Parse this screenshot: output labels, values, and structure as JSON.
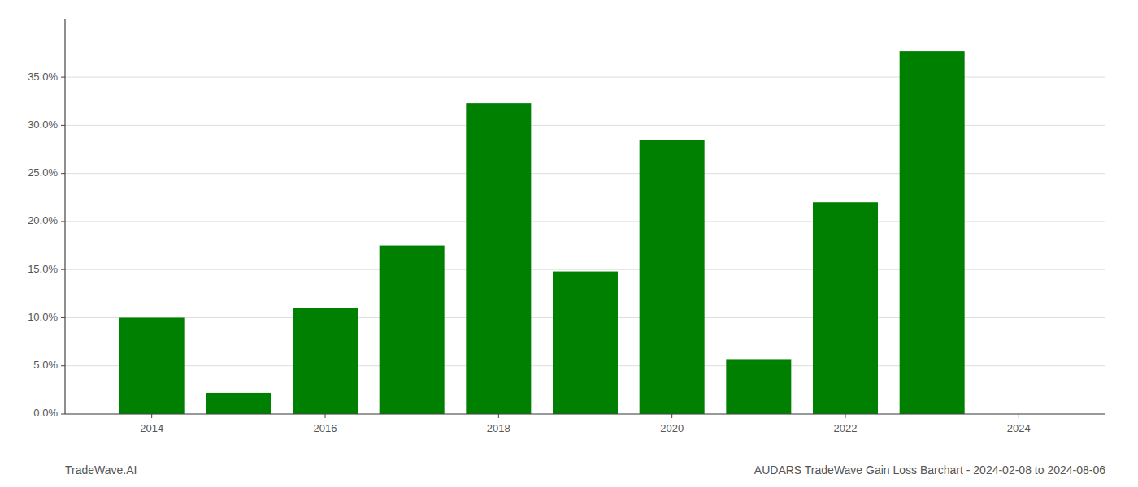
{
  "chart_data": {
    "type": "bar",
    "title": "AUDARS TradeWave Gain Loss Barchart - 2024-02-08 to 2024-08-06",
    "annotations": [
      "TradeWave.AI"
    ],
    "x": [
      2014,
      2015,
      2016,
      2017,
      2018,
      2019,
      2020,
      2021,
      2022,
      2023,
      2024
    ],
    "values": [
      0.1,
      0.022,
      0.11,
      0.175,
      0.323,
      0.148,
      0.285,
      0.057,
      0.22,
      0.377,
      0.0
    ],
    "color": "#008000",
    "xlim": [
      2013,
      2025
    ],
    "xticks": [
      2014,
      2016,
      2018,
      2020,
      2022,
      2024
    ],
    "ylim": [
      0,
      0.41
    ],
    "yticks": [
      {
        "value": 0.0,
        "label": "0.0%"
      },
      {
        "value": 0.05,
        "label": "5.0%"
      },
      {
        "value": 0.1,
        "label": "10.0%"
      },
      {
        "value": 0.15,
        "label": "15.0%"
      },
      {
        "value": 0.2,
        "label": "20.0%"
      },
      {
        "value": 0.25,
        "label": "25.0%"
      },
      {
        "value": 0.3,
        "label": "30.0%"
      },
      {
        "value": 0.35,
        "label": "35.0%"
      }
    ],
    "grid": true
  }
}
